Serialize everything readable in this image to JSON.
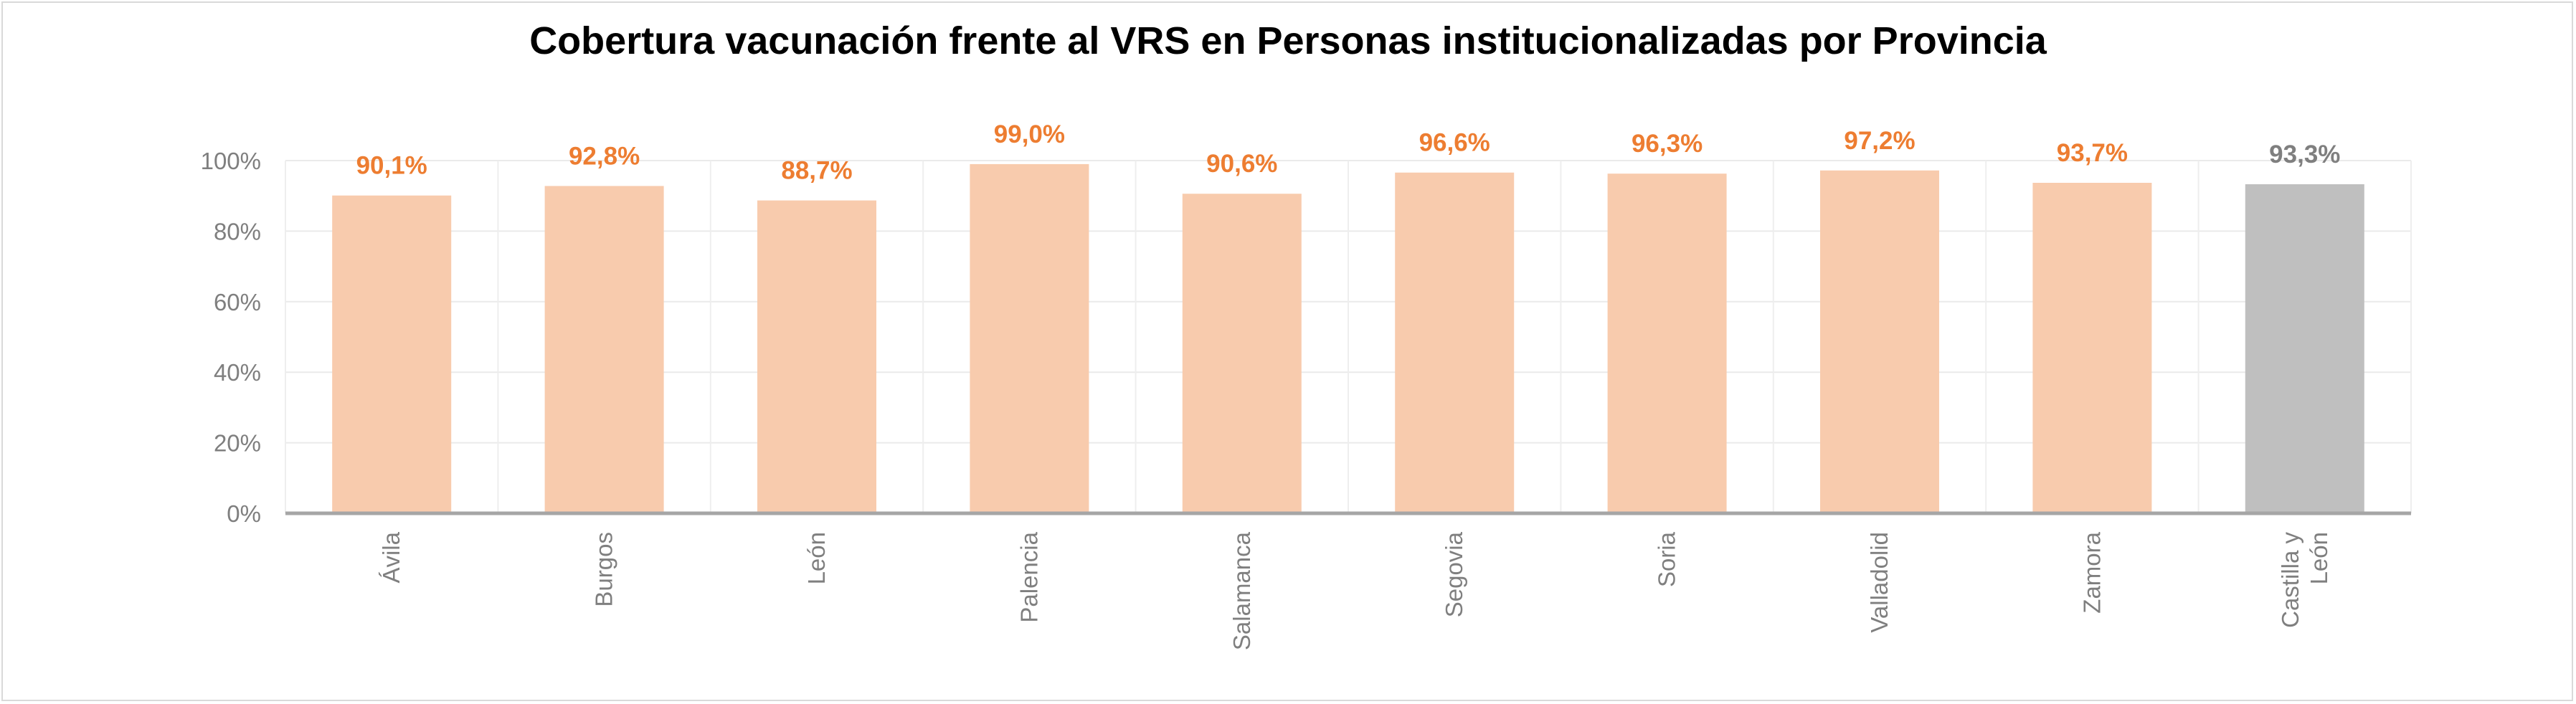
{
  "chart_data": {
    "type": "bar",
    "title": "Cobertura vacunación frente al VRS en Personas institucionalizadas  por Provincia",
    "categories": [
      "Ávila",
      "Burgos",
      "León",
      "Palencia",
      "Salamanca",
      "Segovia",
      "Soria",
      "Valladolid",
      "Zamora",
      "Castilla y León"
    ],
    "category_lines": [
      [
        "Ávila"
      ],
      [
        "Burgos"
      ],
      [
        "León"
      ],
      [
        "Palencia"
      ],
      [
        "Salamanca"
      ],
      [
        "Segovia"
      ],
      [
        "Soria"
      ],
      [
        "Valladolid"
      ],
      [
        "Zamora"
      ],
      [
        "Castilla y",
        "León"
      ]
    ],
    "values": [
      90.1,
      92.8,
      88.7,
      99.0,
      90.6,
      96.6,
      96.3,
      97.2,
      93.7,
      93.3
    ],
    "value_labels": [
      "90,1%",
      "92,8%",
      "88,7%",
      "99,0%",
      "90,6%",
      "96,6%",
      "96,3%",
      "97,2%",
      "93,7%",
      "93,3%"
    ],
    "bar_colors": [
      "#f8cbad",
      "#f8cbad",
      "#f8cbad",
      "#f8cbad",
      "#f8cbad",
      "#f8cbad",
      "#f8cbad",
      "#f8cbad",
      "#f8cbad",
      "#bfbfbf"
    ],
    "label_colors": [
      "#ed7d31",
      "#ed7d31",
      "#ed7d31",
      "#ed7d31",
      "#ed7d31",
      "#ed7d31",
      "#ed7d31",
      "#ed7d31",
      "#ed7d31",
      "#7f7f7f"
    ],
    "yticks": [
      "0%",
      "20%",
      "40%",
      "60%",
      "80%",
      "100%"
    ],
    "ylim": [
      0,
      100
    ],
    "grid": true,
    "legend": "none",
    "xlabel": "",
    "ylabel": ""
  }
}
